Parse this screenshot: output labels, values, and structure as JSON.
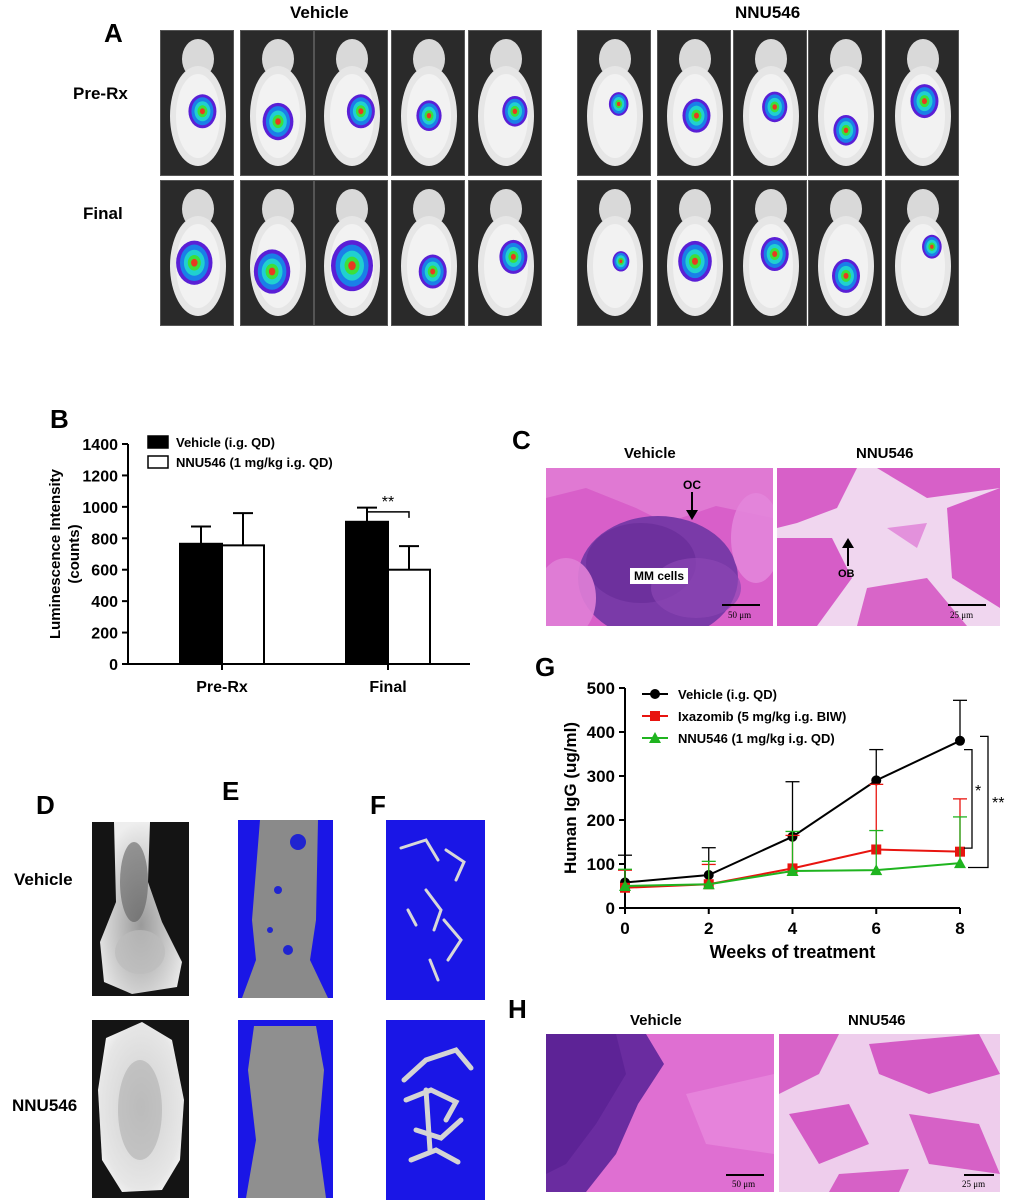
{
  "panel_a": {
    "letter": "A",
    "groups": [
      "Vehicle",
      "NNU546"
    ],
    "rows": [
      "Pre-Rx",
      "Final"
    ]
  },
  "panel_b": {
    "letter": "B"
  },
  "panel_c": {
    "letter": "C",
    "titles": [
      "Vehicle",
      "NNU546"
    ],
    "annotations": {
      "oc": "OC",
      "mm": "MM cells",
      "ob": "OB"
    },
    "scale_bars": [
      "50 μm",
      "25 μm"
    ]
  },
  "panel_d": {
    "letter": "D",
    "rows": [
      "Vehicle",
      "NNU546"
    ]
  },
  "panel_e": {
    "letter": "E"
  },
  "panel_f": {
    "letter": "F"
  },
  "panel_g": {
    "letter": "G"
  },
  "panel_h": {
    "letter": "H",
    "titles": [
      "Vehicle",
      "NNU546"
    ],
    "scale_bars": [
      "50 μm",
      "25 μm"
    ]
  },
  "chart_data": [
    {
      "id": "B",
      "type": "bar",
      "categories": [
        "Pre-Rx",
        "Final"
      ],
      "series": [
        {
          "name": "Vehicle (i.g. QD)",
          "values": [
            765,
            905
          ],
          "errors": [
            110,
            90
          ],
          "color": "#000000"
        },
        {
          "name": "NNU546 (1 mg/kg i.g. QD)",
          "values": [
            755,
            600
          ],
          "errors": [
            205,
            150
          ],
          "color": "#ffffff"
        }
      ],
      "ylabel": "Luminescence Intensity\n(counts)",
      "ylabel_lines": [
        "Luminescence Intensity",
        "(counts)"
      ],
      "ylim": [
        0,
        1400
      ],
      "yticks": [
        0,
        200,
        400,
        600,
        800,
        1000,
        1200,
        1400
      ],
      "significance": [
        {
          "category": "Final",
          "label": "**"
        }
      ],
      "legend": "top-left",
      "grid": false
    },
    {
      "id": "G",
      "type": "line",
      "x": [
        0,
        2,
        4,
        6,
        8
      ],
      "xticks": [
        0,
        2,
        4,
        6,
        8
      ],
      "xlabel": "Weeks of treatment",
      "ylabel": "Human IgG (ug/ml)",
      "ylim": [
        0,
        500
      ],
      "yticks": [
        0,
        100,
        200,
        300,
        400,
        500
      ],
      "xlim": [
        0,
        8
      ],
      "series": [
        {
          "name": "Vehicle (i.g. QD)",
          "values": [
            58,
            75,
            162,
            290,
            380
          ],
          "errors": [
            62,
            62,
            125,
            70,
            92
          ],
          "color": "#000000",
          "marker": "circle"
        },
        {
          "name": "Ixazomib (5 mg/kg i.g. BIW)",
          "values": [
            46,
            54,
            90,
            133,
            128
          ],
          "errors": [
            40,
            45,
            75,
            148,
            120
          ],
          "color": "#e8140f",
          "marker": "square"
        },
        {
          "name": "NNU546 (1 mg/kg i.g. QD)",
          "values": [
            50,
            54,
            84,
            86,
            102
          ],
          "errors": [
            38,
            52,
            90,
            90,
            105
          ],
          "color": "#1fb41f",
          "marker": "triangle"
        }
      ],
      "significance": [
        {
          "label": "*"
        },
        {
          "label": "**"
        }
      ],
      "legend": "top-left",
      "grid": false
    }
  ]
}
